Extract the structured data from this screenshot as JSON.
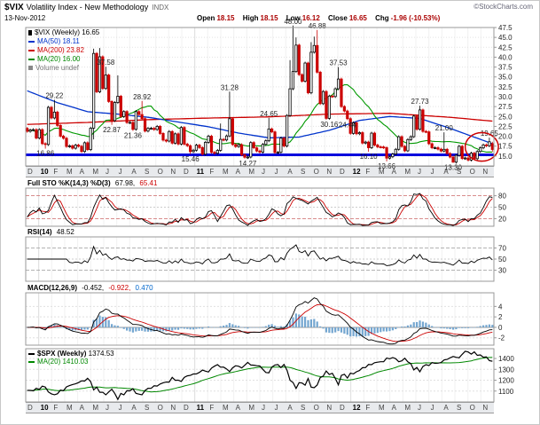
{
  "header": {
    "symbol": "$VIX",
    "title": "Volatility Index - New Methodology",
    "exchange": "INDX",
    "copyright": "©StockCharts.com",
    "date": "13-Nov-2012",
    "quote": {
      "open_label": "Open",
      "open": "18.15",
      "high_label": "High",
      "high": "18.15",
      "low_label": "Low",
      "low": "16.12",
      "close_label": "Close",
      "close": "16.65",
      "chg_label": "Chg",
      "chg": "-1.96 (-10.53%)"
    }
  },
  "main_legend": {
    "price_label": "$VIX (Weekly)",
    "price_value": "16.65",
    "ma50": "MA(50) 18.11",
    "ma200": "MA(200) 23.82",
    "ma20": "MA(20) 16.00",
    "volume": "Volume undef"
  },
  "panels": {
    "sto": {
      "label": "Full STO %K(14,3) %D(3)",
      "k_value": "67.98,",
      "d_value": "65.41",
      "axis": [
        80,
        50,
        20
      ]
    },
    "rsi": {
      "label": "RSI(14)",
      "value": "48.52",
      "axis": [
        70,
        50,
        30
      ]
    },
    "macd": {
      "label": "MACD(12,26,9)",
      "macd_value": "-0.452,",
      "signal_value": "-0.922,",
      "hist_value": "0.470",
      "axis": [
        4,
        2,
        0,
        -2
      ]
    },
    "spx": {
      "label": "$SPX (Weekly)",
      "value": "1374.53",
      "ma_label": "MA(20)",
      "ma_value": "1410.03",
      "axis": [
        1400,
        1300,
        1200,
        1100
      ]
    }
  },
  "chart_data": {
    "type": "candlestick",
    "title": "$VIX weekly candlesticks with MA(20/50/200), Full Stochastic, RSI, MACD and $SPX panels, Dec-2009 to Nov-2012",
    "x_axis": {
      "months": [
        "D",
        "10",
        "F",
        "M",
        "A",
        "M",
        "J",
        "J",
        "A",
        "S",
        "O",
        "N",
        "D",
        "11",
        "F",
        "M",
        "A",
        "M",
        "J",
        "J",
        "A",
        "S",
        "O",
        "N",
        "D",
        "12",
        "F",
        "M",
        "A",
        "M",
        "J",
        "J",
        "A",
        "S",
        "O",
        "N"
      ],
      "bold_labels": [
        "10",
        "11",
        "12"
      ]
    },
    "y_axis": {
      "min": 12.5,
      "max": 47.5,
      "step": 2.5
    },
    "colors": {
      "up": "#000000",
      "down": "#cc0000",
      "ma50": "#0033cc",
      "ma200": "#cc0000",
      "ma20": "#009900",
      "hist": "#74a6d0",
      "sto_k": "#000000",
      "sto_d": "#cc0000",
      "spx": "#000000",
      "spx_ma": "#008800"
    },
    "vix": {
      "first_open": 22.0,
      "closes": [
        21.25,
        21.59,
        21.68,
        19.54,
        21.68,
        18.13,
        17.91,
        27.31,
        24.62,
        26.11,
        22.73,
        20.02,
        19.5,
        17.42,
        17.58,
        16.97,
        17.77,
        17.47,
        16.14,
        18.36,
        16.62,
        22.05,
        40.95,
        31.24,
        40.1,
        32.07,
        35.48,
        28.79,
        23.95,
        28.53,
        30.12,
        24.98,
        26.25,
        23.47,
        23.5,
        21.74,
        26.24,
        25.49,
        24.45,
        21.31,
        21.99,
        22.01,
        21.71,
        22.5,
        20.71,
        19.03,
        18.78,
        21.2,
        18.26,
        20.61,
        18.04,
        22.22,
        18.01,
        17.61,
        16.11,
        16.47,
        17.75,
        17.14,
        15.46,
        18.47,
        20.04,
        15.93,
        15.69,
        16.43,
        19.22,
        19.06,
        20.08,
        24.44,
        17.91,
        17.4,
        17.87,
        15.32,
        14.69,
        14.75,
        18.4,
        17.07,
        16.27,
        15.98,
        17.95,
        18.86,
        21.85,
        21.1,
        15.87,
        15.95,
        19.53,
        17.52,
        25.25,
        32.0,
        36.36,
        43.05,
        35.59,
        33.92,
        38.52,
        30.98,
        41.25,
        42.96,
        36.2,
        28.24,
        31.32,
        24.53,
        30.16,
        30.04,
        32.0,
        34.47,
        27.52,
        26.38,
        24.44,
        20.73,
        23.4,
        20.63,
        20.91,
        18.28,
        18.53,
        17.1,
        20.79,
        17.78,
        17.31,
        17.29,
        17.11,
        14.47,
        14.82,
        15.5,
        16.7,
        19.89,
        17.44,
        16.32,
        19.16,
        19.89,
        25.1,
        21.76,
        26.66,
        21.23,
        21.11,
        18.11,
        17.08,
        17.1,
        16.74,
        16.27,
        16.7,
        15.64,
        14.74,
        13.45,
        15.18,
        17.47,
        14.38,
        14.51,
        13.98,
        15.73,
        14.33,
        16.14,
        17.06,
        17.81,
        17.59,
        18.61,
        16.65
      ],
      "highs_override": {
        "9": 29.22,
        "22": 42.15,
        "24": 42.3,
        "26": 37.58,
        "30": 35.4,
        "38": 28.92,
        "64": 23.22,
        "67": 31.28,
        "80": 24.65,
        "87": 39.25,
        "88": 48.0,
        "89": 45.0,
        "94": 43.8,
        "95": 45.2,
        "96": 46.88,
        "103": 37.53,
        "130": 27.73,
        "138": 21.0,
        "153": 19.65,
        "154": 18.15
      },
      "lows_override": {
        "6": 16.86,
        "22": 19.2,
        "28": 22.87,
        "35": 21.36,
        "54": 15.46,
        "58": 15.1,
        "73": 14.27,
        "113": 16.1,
        "119": 13.66,
        "141": 13.3,
        "154": 16.12
      },
      "last_week": {
        "open": 18.15,
        "high": 18.15,
        "low": 16.12,
        "close": 16.65
      }
    },
    "overlays": {
      "ma20_period": 20,
      "ma50_points": {
        "idx": [
          0,
          10,
          20,
          30,
          40,
          50,
          60,
          70,
          80,
          90,
          100,
          110,
          120,
          130,
          140,
          154
        ],
        "val": [
          31.5,
          28.5,
          26.2,
          25.6,
          24.8,
          23.6,
          22.4,
          20.8,
          19.6,
          19.8,
          21.5,
          24.0,
          25.0,
          24.5,
          22.0,
          18.11
        ]
      },
      "ma200_points": {
        "idx": [
          0,
          20,
          40,
          60,
          80,
          100,
          120,
          140,
          154
        ],
        "val": [
          23.0,
          23.5,
          24.2,
          24.6,
          24.9,
          25.6,
          25.8,
          24.8,
          23.82
        ]
      }
    },
    "price_labels": [
      {
        "week": 9,
        "text": "29.22",
        "pos": "above"
      },
      {
        "week": 6,
        "text": "16.86",
        "pos": "below"
      },
      {
        "week": 28,
        "text": "22.87",
        "pos": "below"
      },
      {
        "week": 26,
        "text": "37.58",
        "pos": "above"
      },
      {
        "week": 35,
        "text": "21.36",
        "pos": "below"
      },
      {
        "week": 38,
        "text": "28.92",
        "pos": "above"
      },
      {
        "week": 54,
        "text": "15.46",
        "pos": "below"
      },
      {
        "week": 67,
        "text": "31.28",
        "pos": "above"
      },
      {
        "week": 80,
        "text": "24.65",
        "pos": "above"
      },
      {
        "week": 73,
        "text": "14.27",
        "pos": "below"
      },
      {
        "week": 88,
        "text": "48.00",
        "pos": "above"
      },
      {
        "week": 96,
        "text": "46.88",
        "pos": "above"
      },
      {
        "week": 100,
        "text": "30.16",
        "pos": "below"
      },
      {
        "week": 103,
        "text": "37.53",
        "pos": "above"
      },
      {
        "week": 106,
        "text": "24.44",
        "pos": "below"
      },
      {
        "week": 113,
        "text": "16.10",
        "pos": "below"
      },
      {
        "week": 119,
        "text": "13.66",
        "pos": "below"
      },
      {
        "week": 130,
        "text": "27.73",
        "pos": "above"
      },
      {
        "week": 138,
        "text": "21.00",
        "pos": "above"
      },
      {
        "week": 141,
        "text": "13.30",
        "pos": "below"
      },
      {
        "week": 153,
        "text": "19.65",
        "pos": "above"
      }
    ],
    "annotations": {
      "support_line": {
        "value": 15.3,
        "color": "#0000dd"
      },
      "ellipse": {
        "week_center": 150.5,
        "value_center": 17.3,
        "week_radius": 5.5,
        "value_radius": 3.6,
        "color": "#cc0000"
      }
    },
    "sto_range": {
      "min": 0,
      "max": 100
    },
    "rsi_range": {
      "min": 10,
      "max": 90
    },
    "macd_range": {
      "min": -3.4,
      "max": 6.6
    },
    "spx": {
      "y_min": 1000,
      "y_max": 1490,
      "closes": [
        1106,
        1106,
        1102,
        1126,
        1115,
        1145,
        1136,
        1092,
        1074,
        1066,
        1075,
        1109,
        1104,
        1139,
        1150,
        1160,
        1167,
        1178,
        1194,
        1192,
        1217,
        1187,
        1111,
        1136,
        1088,
        1089,
        1065,
        1092,
        1118,
        1077,
        1023,
        1078,
        1065,
        1103,
        1102,
        1122,
        1079,
        1072,
        1065,
        1105,
        1126,
        1125,
        1149,
        1146,
        1165,
        1176,
        1183,
        1183,
        1226,
        1199,
        1200,
        1189,
        1225,
        1240,
        1244,
        1257,
        1258,
        1272,
        1293,
        1283,
        1276,
        1311,
        1329,
        1343,
        1320,
        1321,
        1304,
        1279,
        1314,
        1333,
        1328,
        1313,
        1337,
        1364,
        1340,
        1338,
        1333,
        1331,
        1300,
        1271,
        1268,
        1320,
        1340,
        1344,
        1316,
        1345,
        1292,
        1199,
        1179,
        1124,
        1177,
        1174,
        1154,
        1216,
        1136,
        1131,
        1155,
        1224,
        1238,
        1285,
        1253,
        1264,
        1216,
        1158,
        1244,
        1255,
        1220,
        1265,
        1258,
        1278,
        1289,
        1315,
        1316,
        1345,
        1343,
        1361,
        1366,
        1370,
        1371,
        1404,
        1397,
        1408,
        1398,
        1370,
        1378,
        1403,
        1369,
        1353,
        1295,
        1318,
        1278,
        1326,
        1343,
        1335,
        1362,
        1355,
        1357,
        1363,
        1386,
        1391,
        1406,
        1418,
        1411,
        1407,
        1438,
        1466,
        1460,
        1440,
        1461,
        1429,
        1433,
        1412,
        1414,
        1380,
        1374.53
      ]
    }
  }
}
